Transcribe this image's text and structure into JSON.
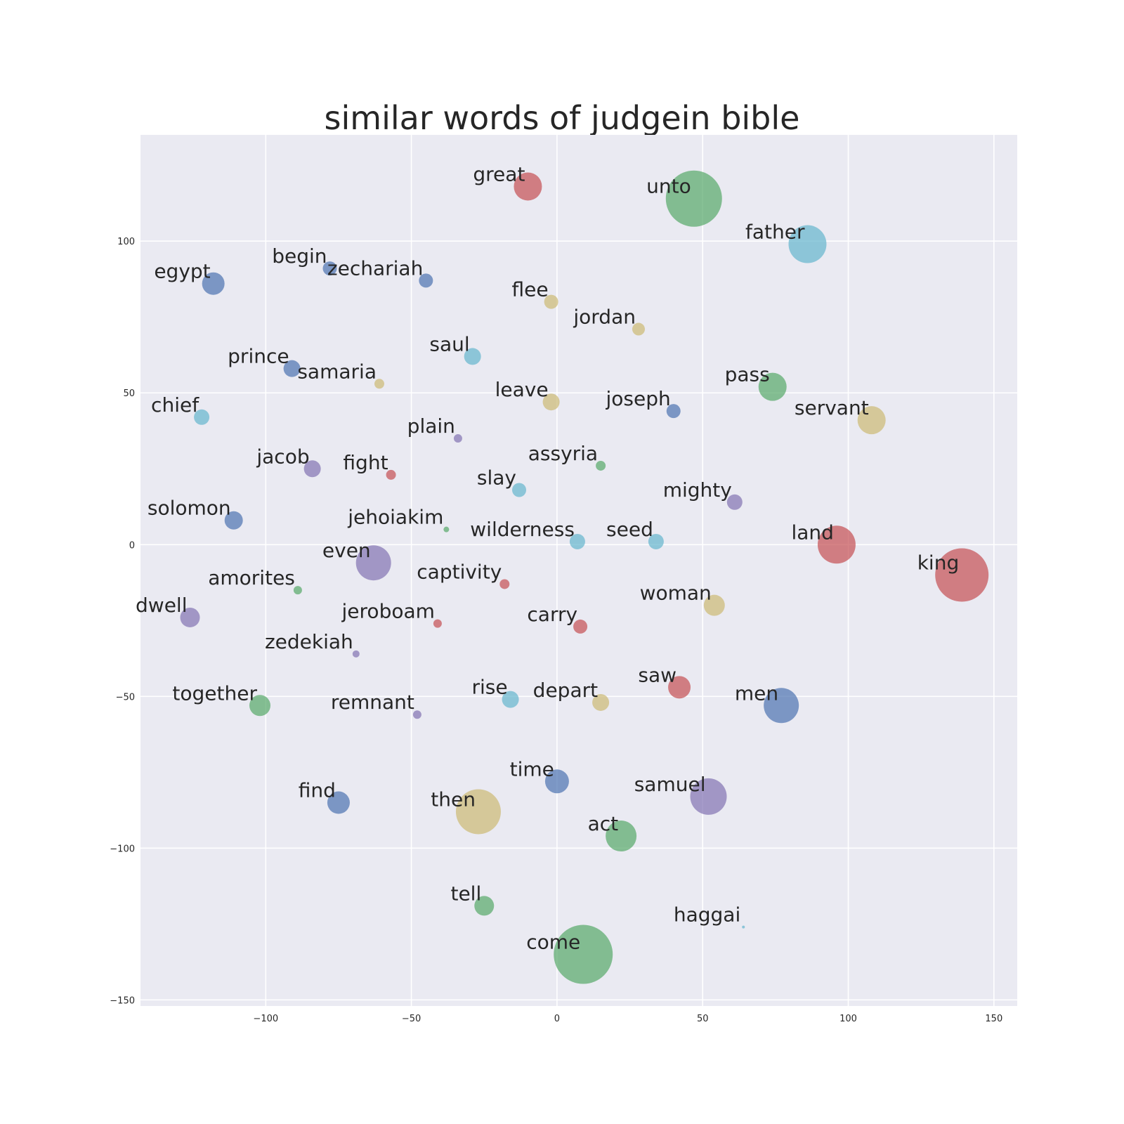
{
  "chart_data": {
    "type": "scatter",
    "title": "similar words of judgein bible",
    "xlabel": "",
    "ylabel": "",
    "xlim": [
      -143,
      158
    ],
    "ylim": [
      -152,
      135
    ],
    "xticks": [
      -100,
      -50,
      0,
      50,
      100,
      150
    ],
    "yticks": [
      -150,
      -100,
      -50,
      0,
      50,
      100
    ],
    "xtick_labels": [
      "−100",
      "−50",
      "0",
      "50",
      "100",
      "150"
    ],
    "ytick_labels": [
      "−150",
      "−100",
      "−50",
      "0",
      "50",
      "100"
    ],
    "grid": true,
    "background": "#eaeaf2",
    "palette": {
      "red": "#c44e52",
      "green": "#55a868",
      "blue": "#4c72b0",
      "cyan": "#64b5cd",
      "purple": "#8172b2",
      "tan": "#ccb974"
    },
    "points": [
      {
        "label": "great",
        "x": -10,
        "y": 118,
        "size": 20,
        "color": "red"
      },
      {
        "label": "unto",
        "x": 47,
        "y": 114,
        "size": 40,
        "color": "green"
      },
      {
        "label": "father",
        "x": 86,
        "y": 99,
        "size": 27,
        "color": "cyan"
      },
      {
        "label": "begin",
        "x": -78,
        "y": 91,
        "size": 10,
        "color": "blue"
      },
      {
        "label": "zechariah",
        "x": -45,
        "y": 87,
        "size": 10,
        "color": "blue"
      },
      {
        "label": "egypt",
        "x": -118,
        "y": 86,
        "size": 16,
        "color": "blue"
      },
      {
        "label": "flee",
        "x": -2,
        "y": 80,
        "size": 10,
        "color": "tan"
      },
      {
        "label": "jordan",
        "x": 28,
        "y": 71,
        "size": 9,
        "color": "tan"
      },
      {
        "label": "saul",
        "x": -29,
        "y": 62,
        "size": 12,
        "color": "cyan"
      },
      {
        "label": "prince",
        "x": -91,
        "y": 58,
        "size": 12,
        "color": "blue"
      },
      {
        "label": "samaria",
        "x": -61,
        "y": 53,
        "size": 7,
        "color": "tan"
      },
      {
        "label": "pass",
        "x": 74,
        "y": 52,
        "size": 20,
        "color": "green"
      },
      {
        "label": "leave",
        "x": -2,
        "y": 47,
        "size": 12,
        "color": "tan"
      },
      {
        "label": "joseph",
        "x": 40,
        "y": 44,
        "size": 10,
        "color": "blue"
      },
      {
        "label": "chief",
        "x": -122,
        "y": 42,
        "size": 11,
        "color": "cyan"
      },
      {
        "label": "servant",
        "x": 108,
        "y": 41,
        "size": 20,
        "color": "tan"
      },
      {
        "label": "plain",
        "x": -34,
        "y": 35,
        "size": 6,
        "color": "purple"
      },
      {
        "label": "assyria",
        "x": 15,
        "y": 26,
        "size": 7,
        "color": "green"
      },
      {
        "label": "jacob",
        "x": -84,
        "y": 25,
        "size": 12,
        "color": "purple"
      },
      {
        "label": "fight",
        "x": -57,
        "y": 23,
        "size": 7,
        "color": "red"
      },
      {
        "label": "slay",
        "x": -13,
        "y": 18,
        "size": 10,
        "color": "cyan"
      },
      {
        "label": "mighty",
        "x": 61,
        "y": 14,
        "size": 11,
        "color": "purple"
      },
      {
        "label": "solomon",
        "x": -111,
        "y": 8,
        "size": 13,
        "color": "blue"
      },
      {
        "label": "jehoiakim",
        "x": -38,
        "y": 5,
        "size": 4,
        "color": "green"
      },
      {
        "label": "wilderness",
        "x": 7,
        "y": 1,
        "size": 11,
        "color": "cyan"
      },
      {
        "label": "seed",
        "x": 34,
        "y": 1,
        "size": 11,
        "color": "cyan"
      },
      {
        "label": "land",
        "x": 96,
        "y": 0,
        "size": 27,
        "color": "red"
      },
      {
        "label": "even",
        "x": -63,
        "y": -6,
        "size": 25,
        "color": "purple"
      },
      {
        "label": "king",
        "x": 139,
        "y": -10,
        "size": 38,
        "color": "red"
      },
      {
        "label": "captivity",
        "x": -18,
        "y": -13,
        "size": 7,
        "color": "red"
      },
      {
        "label": "amorites",
        "x": -89,
        "y": -15,
        "size": 6,
        "color": "green"
      },
      {
        "label": "woman",
        "x": 54,
        "y": -20,
        "size": 15,
        "color": "tan"
      },
      {
        "label": "dwell",
        "x": -126,
        "y": -24,
        "size": 14,
        "color": "purple"
      },
      {
        "label": "jeroboam",
        "x": -41,
        "y": -26,
        "size": 6,
        "color": "red"
      },
      {
        "label": "carry",
        "x": 8,
        "y": -27,
        "size": 10,
        "color": "red"
      },
      {
        "label": "zedekiah",
        "x": -69,
        "y": -36,
        "size": 5,
        "color": "purple"
      },
      {
        "label": "saw",
        "x": 42,
        "y": -47,
        "size": 16,
        "color": "red"
      },
      {
        "label": "together",
        "x": -102,
        "y": -53,
        "size": 15,
        "color": "green"
      },
      {
        "label": "rise",
        "x": -16,
        "y": -51,
        "size": 12,
        "color": "cyan"
      },
      {
        "label": "depart",
        "x": 15,
        "y": -52,
        "size": 12,
        "color": "tan"
      },
      {
        "label": "men",
        "x": 77,
        "y": -53,
        "size": 25,
        "color": "blue"
      },
      {
        "label": "remnant",
        "x": -48,
        "y": -56,
        "size": 6,
        "color": "purple"
      },
      {
        "label": "time",
        "x": 0,
        "y": -78,
        "size": 17,
        "color": "blue"
      },
      {
        "label": "samuel",
        "x": 52,
        "y": -83,
        "size": 26,
        "color": "purple"
      },
      {
        "label": "find",
        "x": -75,
        "y": -85,
        "size": 16,
        "color": "blue"
      },
      {
        "label": "then",
        "x": -27,
        "y": -88,
        "size": 32,
        "color": "tan"
      },
      {
        "label": "act",
        "x": 22,
        "y": -96,
        "size": 22,
        "color": "green"
      },
      {
        "label": "tell",
        "x": -25,
        "y": -119,
        "size": 14,
        "color": "green"
      },
      {
        "label": "haggai",
        "x": 64,
        "y": -126,
        "size": 2,
        "color": "cyan"
      },
      {
        "label": "come",
        "x": 9,
        "y": -135,
        "size": 42,
        "color": "green"
      }
    ]
  }
}
